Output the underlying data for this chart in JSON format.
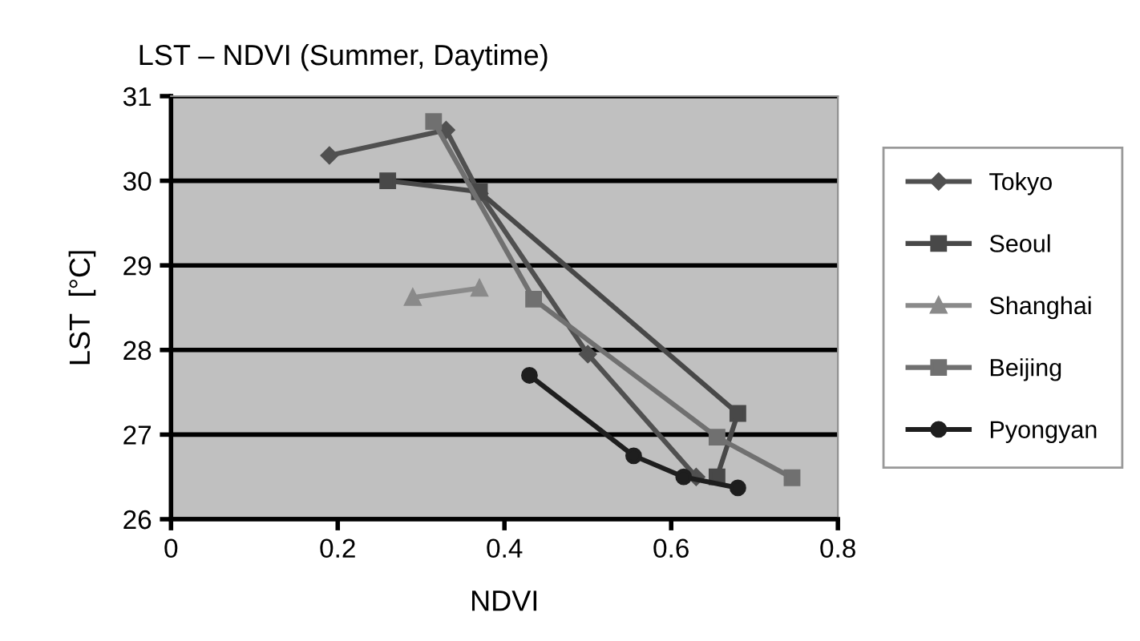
{
  "chart_data": {
    "type": "line",
    "title": "LST – NDVI (Summer, Daytime)",
    "xlabel": "NDVI",
    "ylabel": "LST  [°C]",
    "xlim": [
      0,
      0.8
    ],
    "xticks": [
      0,
      0.2,
      0.4,
      0.6,
      0.8
    ],
    "ylim": [
      26,
      31
    ],
    "yticks": [
      26,
      27,
      28,
      29,
      30,
      31
    ],
    "grid": "y",
    "legend": "right",
    "series": [
      {
        "name": "Tokyo",
        "color": "#505050",
        "marker": "diamond",
        "x": [
          0.19,
          0.33,
          0.37,
          0.5,
          0.63
        ],
        "values": [
          30.3,
          30.6,
          29.85,
          27.95,
          26.5
        ]
      },
      {
        "name": "Seoul",
        "color": "#484848",
        "marker": "square",
        "x": [
          0.26,
          0.37,
          0.68,
          0.655
        ],
        "values": [
          30.0,
          29.87,
          27.25,
          26.5
        ]
      },
      {
        "name": "Shanghai",
        "color": "#8a8a8a",
        "marker": "triangle",
        "x": [
          0.29,
          0.37
        ],
        "values": [
          28.62,
          28.73
        ]
      },
      {
        "name": "Beijing",
        "color": "#707070",
        "marker": "square",
        "x": [
          0.315,
          0.435,
          0.655,
          0.745
        ],
        "values": [
          30.7,
          28.6,
          26.97,
          26.49
        ]
      },
      {
        "name": "Pyongyan",
        "color": "#1e1e1e",
        "marker": "circle",
        "x": [
          0.43,
          0.555,
          0.615,
          0.68
        ],
        "values": [
          27.7,
          26.75,
          26.5,
          26.37
        ]
      }
    ]
  }
}
